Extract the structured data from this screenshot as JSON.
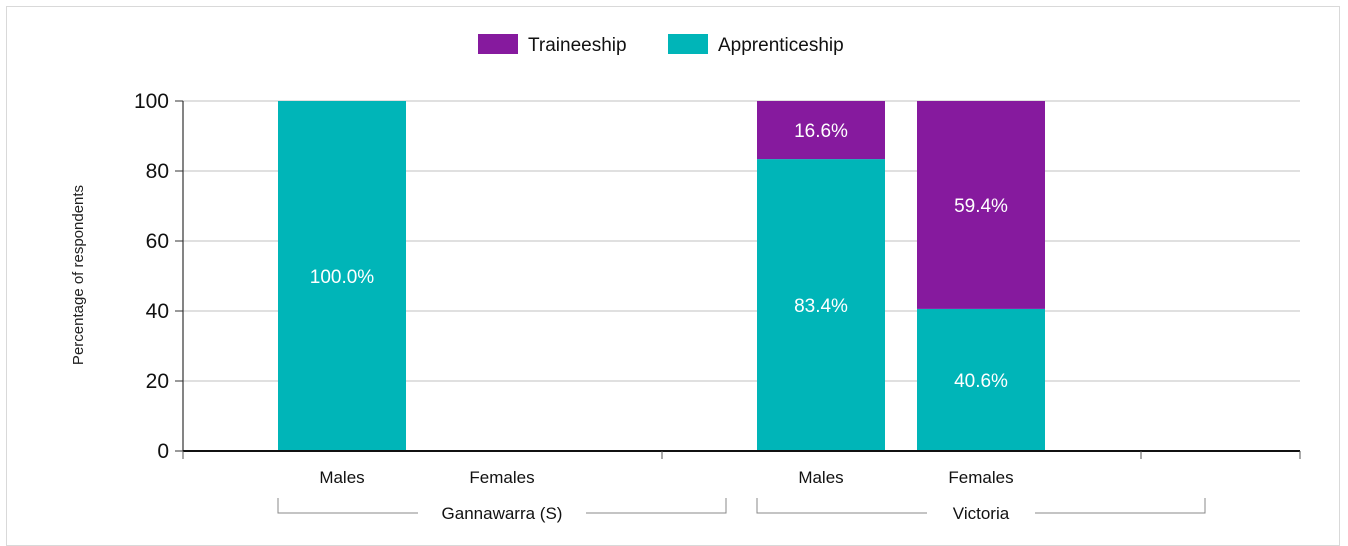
{
  "chart_data": {
    "type": "bar",
    "stacked": true,
    "ylabel": "Percentage of respondents",
    "ylim": [
      0,
      100
    ],
    "yticks": [
      0,
      20,
      40,
      60,
      80,
      100
    ],
    "grid": true,
    "legend_position": "top-center",
    "groups": [
      {
        "label": "Gannawarra (S)",
        "categories": [
          "Males",
          "Females"
        ]
      },
      {
        "label": "Victoria",
        "categories": [
          "Males",
          "Females"
        ]
      }
    ],
    "categories": [
      "Males",
      "Females",
      "Males",
      "Females"
    ],
    "series": [
      {
        "name": "Apprenticeship",
        "color": "#00b5b8",
        "values": [
          100.0,
          null,
          83.4,
          40.6
        ],
        "labels": [
          "100.0%",
          "",
          "83.4%",
          "40.6%"
        ]
      },
      {
        "name": "Traineeship",
        "color": "#861a9e",
        "values": [
          0,
          null,
          16.6,
          59.4
        ],
        "labels": [
          "",
          "",
          "16.6%",
          "59.4%"
        ]
      }
    ],
    "legend": [
      {
        "name": "Traineeship",
        "color": "#861a9e"
      },
      {
        "name": "Apprenticeship",
        "color": "#00b5b8"
      }
    ]
  }
}
